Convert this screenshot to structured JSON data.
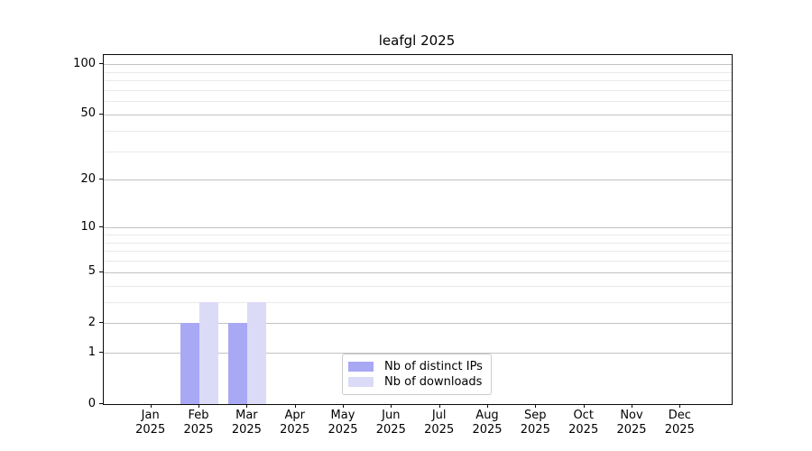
{
  "chart_data": {
    "type": "bar",
    "title": "leafgl 2025",
    "x_categories": [
      "Jan",
      "Feb",
      "Mar",
      "Apr",
      "May",
      "Jun",
      "Jul",
      "Aug",
      "Sep",
      "Oct",
      "Nov",
      "Dec"
    ],
    "x_year_label": "2025",
    "series": [
      {
        "name": "Nb of distinct IPs",
        "color": "#a8a8f5",
        "values": [
          0,
          2,
          2,
          0,
          0,
          0,
          0,
          0,
          0,
          0,
          0,
          0
        ]
      },
      {
        "name": "Nb of downloads",
        "color": "#dbdbf8",
        "values": [
          0,
          3,
          3,
          0,
          0,
          0,
          0,
          0,
          0,
          0,
          0,
          0
        ]
      }
    ],
    "y_scale": "log10(1+x)",
    "y_ticks": [
      0,
      1,
      2,
      5,
      10,
      20,
      50,
      100
    ],
    "y_minor_gridlines": [
      3,
      4,
      6,
      7,
      8,
      9,
      30,
      40,
      60,
      70,
      80,
      90
    ],
    "ylim": [
      0,
      113
    ],
    "grid": "horizontal-only",
    "legend_position": "lower-center",
    "colors": {
      "spine": "#0a0a0a",
      "major_grid": "#c3c3c3",
      "minor_grid": "#e9e9e9",
      "text": "#000000",
      "background": "#ffffff"
    }
  }
}
